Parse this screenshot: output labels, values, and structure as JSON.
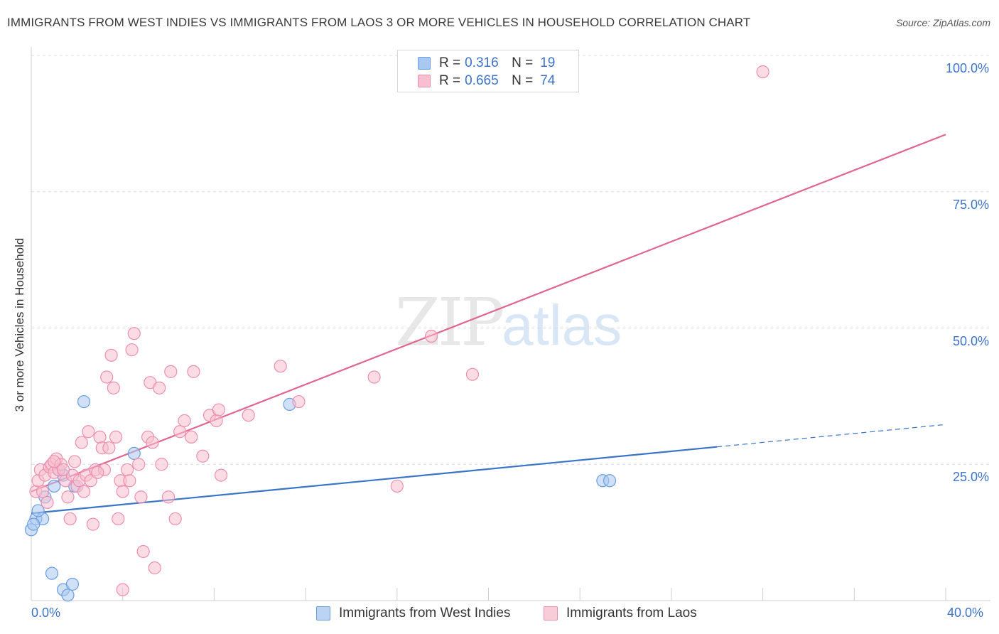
{
  "title": "IMMIGRANTS FROM WEST INDIES VS IMMIGRANTS FROM LAOS 3 OR MORE VEHICLES IN HOUSEHOLD CORRELATION CHART",
  "source": "Source: ZipAtlas.com",
  "watermark": {
    "zip": "ZIP",
    "atlas": "atlas"
  },
  "legend_top": {
    "rows": [
      {
        "r_label": "R =",
        "r_value": "0.316",
        "n_label": "N =",
        "n_value": "19"
      },
      {
        "r_label": "R =",
        "r_value": "0.665",
        "n_label": "N =",
        "n_value": "74"
      }
    ]
  },
  "legend_bottom": [
    "Immigrants from West Indies",
    "Immigrants from Laos"
  ],
  "chart_data": {
    "type": "scatter",
    "title": "IMMIGRANTS FROM WEST INDIES VS IMMIGRANTS FROM LAOS 3 OR MORE VEHICLES IN HOUSEHOLD CORRELATION CHART",
    "xlabel": "",
    "ylabel": "3 or more Vehicles in Household",
    "xlim": [
      0,
      40
    ],
    "ylim": [
      0,
      100
    ],
    "x_tick_labels": [
      "0.0%",
      "40.0%"
    ],
    "y_tick_labels": [
      "100.0%",
      "75.0%",
      "50.0%",
      "25.0%"
    ],
    "y_ticks": [
      100,
      75,
      50,
      25
    ],
    "grid": true,
    "legend_position": "top-center",
    "colors": {
      "west_indies_fill": "#a9c8f0",
      "west_indies_stroke": "#6a9ee0",
      "west_indies_line": "#3a74c9",
      "laos_fill": "#f7bfd0",
      "laos_stroke": "#ec8fae",
      "laos_line": "#e0668e",
      "tick_text": "#3b73c8"
    },
    "series": [
      {
        "name": "Immigrants from West Indies",
        "points": [
          [
            0.0,
            13.0
          ],
          [
            0.2,
            15.0
          ],
          [
            0.5,
            15.0
          ],
          [
            0.3,
            16.5
          ],
          [
            0.6,
            19.0
          ],
          [
            1.0,
            21.0
          ],
          [
            1.4,
            23.0
          ],
          [
            1.2,
            24.0
          ],
          [
            1.9,
            21.0
          ],
          [
            2.3,
            36.5
          ],
          [
            4.5,
            27.0
          ],
          [
            11.3,
            36.0
          ],
          [
            25.0,
            22.0
          ],
          [
            25.3,
            22.0
          ],
          [
            0.9,
            5.0
          ],
          [
            1.4,
            2.0
          ],
          [
            1.8,
            3.0
          ],
          [
            1.6,
            1.0
          ],
          [
            0.1,
            14.0
          ]
        ],
        "trend": {
          "x_start": 0,
          "y_start": 16.0,
          "x_end_solid": 30,
          "y_end_solid": 28.2,
          "x_end": 40,
          "y_end": 32.3
        }
      },
      {
        "name": "Immigrants from Laos",
        "points": [
          [
            0.2,
            20.0
          ],
          [
            0.3,
            22.0
          ],
          [
            0.4,
            24.0
          ],
          [
            0.5,
            20.0
          ],
          [
            0.6,
            23.0
          ],
          [
            0.8,
            24.5
          ],
          [
            0.9,
            25.0
          ],
          [
            1.0,
            23.5
          ],
          [
            1.1,
            26.0
          ],
          [
            1.2,
            24.0
          ],
          [
            1.3,
            25.0
          ],
          [
            1.5,
            22.0
          ],
          [
            1.6,
            19.0
          ],
          [
            1.7,
            15.0
          ],
          [
            1.8,
            23.0
          ],
          [
            1.9,
            25.5
          ],
          [
            2.0,
            21.0
          ],
          [
            2.1,
            22.0
          ],
          [
            2.2,
            29.0
          ],
          [
            2.3,
            20.0
          ],
          [
            2.4,
            23.0
          ],
          [
            2.5,
            31.0
          ],
          [
            2.6,
            22.0
          ],
          [
            2.7,
            14.0
          ],
          [
            2.8,
            24.0
          ],
          [
            3.0,
            30.0
          ],
          [
            3.1,
            28.0
          ],
          [
            3.2,
            24.0
          ],
          [
            3.3,
            41.0
          ],
          [
            3.4,
            28.0
          ],
          [
            3.5,
            45.0
          ],
          [
            3.6,
            39.0
          ],
          [
            3.7,
            30.0
          ],
          [
            3.8,
            15.0
          ],
          [
            3.9,
            22.0
          ],
          [
            4.0,
            20.0
          ],
          [
            4.2,
            24.0
          ],
          [
            4.3,
            22.0
          ],
          [
            4.4,
            46.0
          ],
          [
            4.5,
            49.0
          ],
          [
            4.7,
            25.0
          ],
          [
            4.8,
            19.0
          ],
          [
            4.9,
            9.0
          ],
          [
            5.1,
            30.0
          ],
          [
            5.2,
            40.0
          ],
          [
            5.3,
            29.0
          ],
          [
            5.4,
            6.0
          ],
          [
            5.6,
            39.0
          ],
          [
            5.7,
            25.0
          ],
          [
            6.0,
            19.0
          ],
          [
            6.1,
            42.0
          ],
          [
            6.3,
            15.0
          ],
          [
            6.5,
            31.0
          ],
          [
            6.7,
            33.0
          ],
          [
            7.0,
            30.0
          ],
          [
            7.1,
            42.0
          ],
          [
            7.5,
            26.5
          ],
          [
            7.8,
            34.0
          ],
          [
            8.1,
            33.0
          ],
          [
            8.2,
            35.0
          ],
          [
            8.3,
            23.0
          ],
          [
            9.5,
            34.0
          ],
          [
            10.9,
            43.0
          ],
          [
            11.7,
            36.5
          ],
          [
            15.0,
            41.0
          ],
          [
            16.0,
            21.0
          ],
          [
            17.5,
            48.5
          ],
          [
            19.3,
            41.5
          ],
          [
            32.0,
            97.0
          ],
          [
            4.0,
            2.0
          ],
          [
            1.0,
            25.5
          ],
          [
            0.7,
            18.0
          ],
          [
            2.9,
            23.5
          ],
          [
            1.4,
            24.0
          ]
        ],
        "trend": {
          "x_start": 0,
          "y_start": 20.0,
          "x_end": 40,
          "y_end": 85.5
        }
      }
    ]
  }
}
